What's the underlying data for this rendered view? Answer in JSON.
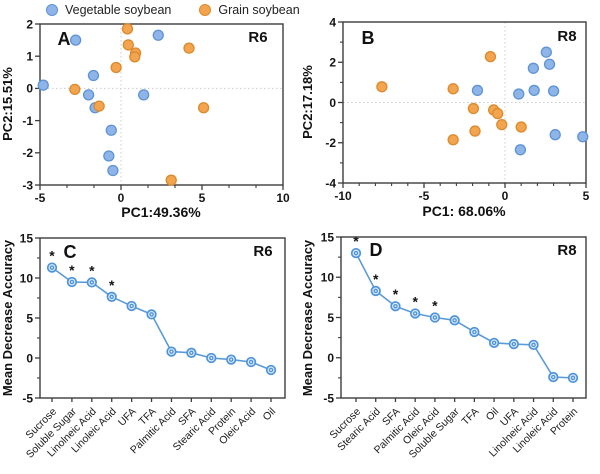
{
  "legend": {
    "items": [
      {
        "label": "Vegetable soybean",
        "fill": "#8FB5E8",
        "stroke": "#5E93D6"
      },
      {
        "label": "Grain soybean",
        "fill": "#F2A44F",
        "stroke": "#DB8A2E"
      }
    ]
  },
  "chart_data": [
    {
      "type": "scatter",
      "panel_letter": "A",
      "stage_label": "R6",
      "xlabel": "PC1:49.36%",
      "ylabel": "PC2:15.51%",
      "xlim": [
        -5,
        10
      ],
      "ylim": [
        -3,
        2
      ],
      "xticks": [
        -5,
        0,
        5,
        10
      ],
      "yticks": [
        -3,
        -2,
        -1,
        0,
        1,
        2
      ],
      "x_minor_step": 1.6667,
      "y_minor_step": null,
      "zero_lines": true,
      "grid": false,
      "legend_position": "top",
      "series": [
        {
          "name": "Vegetable soybean",
          "fill": "#8FB5E8",
          "stroke": "#5E93D6",
          "points": [
            [
              -4.8,
              0.1
            ],
            [
              -2.8,
              1.5
            ],
            [
              -1.7,
              0.4
            ],
            [
              -2.0,
              -0.2
            ],
            [
              -1.6,
              -0.6
            ],
            [
              2.3,
              1.65
            ],
            [
              1.4,
              -0.2
            ],
            [
              -0.6,
              -1.3
            ],
            [
              -0.75,
              -2.1
            ],
            [
              -0.5,
              -2.55
            ]
          ]
        },
        {
          "name": "Grain soybean",
          "fill": "#F2A44F",
          "stroke": "#DB8A2E",
          "points": [
            [
              0.4,
              1.85
            ],
            [
              0.45,
              1.35
            ],
            [
              0.9,
              1.1
            ],
            [
              0.85,
              0.98
            ],
            [
              -0.3,
              0.65
            ],
            [
              -2.85,
              -0.03
            ],
            [
              -1.35,
              -0.55
            ],
            [
              4.2,
              1.25
            ],
            [
              5.1,
              -0.6
            ],
            [
              3.1,
              -2.85
            ]
          ]
        }
      ]
    },
    {
      "type": "scatter",
      "panel_letter": "B",
      "stage_label": "R8",
      "xlabel": "PC1: 68.06%",
      "ylabel": "PC2:17.18%",
      "xlim": [
        -10,
        5
      ],
      "ylim": [
        -4,
        4
      ],
      "xticks": [
        -10,
        -5,
        0,
        5
      ],
      "yticks": [
        -4,
        -2,
        0,
        2,
        4
      ],
      "x_minor_step": 1,
      "y_minor_step": 1,
      "zero_lines": true,
      "grid": false,
      "series": [
        {
          "name": "Vegetable soybean",
          "fill": "#8FB5E8",
          "stroke": "#5E93D6",
          "points": [
            [
              2.55,
              2.5
            ],
            [
              2.75,
              1.9
            ],
            [
              1.75,
              1.7
            ],
            [
              -1.7,
              0.6
            ],
            [
              0.85,
              0.42
            ],
            [
              1.8,
              0.6
            ],
            [
              3.0,
              0.57
            ],
            [
              3.1,
              -1.6
            ],
            [
              4.8,
              -1.7
            ],
            [
              0.95,
              -2.35
            ]
          ]
        },
        {
          "name": "Grain soybean",
          "fill": "#F2A44F",
          "stroke": "#DB8A2E",
          "points": [
            [
              -7.6,
              0.78
            ],
            [
              -3.2,
              0.68
            ],
            [
              -0.9,
              2.28
            ],
            [
              -1.95,
              -0.3
            ],
            [
              -0.7,
              -0.37
            ],
            [
              -0.45,
              -0.55
            ],
            [
              -0.2,
              -1.1
            ],
            [
              -1.85,
              -1.42
            ],
            [
              -3.2,
              -1.85
            ],
            [
              1.0,
              -1.22
            ]
          ]
        }
      ]
    },
    {
      "type": "line",
      "panel_letter": "C",
      "stage_label": "R6",
      "xlabel": "",
      "ylabel": "Mean Decrease Accuracy",
      "ylim": [
        -5,
        15
      ],
      "yticks": [
        -5,
        0,
        5,
        10,
        15
      ],
      "y_minor_step": 2.5,
      "line_color": "#5B9BD5",
      "marker_fill": "#DCEAF9",
      "marker_stroke": "#4E94DB",
      "categories": [
        "Sucrose",
        "Soluble Sugar",
        "Linolneic Acid",
        "Linoleic Acid",
        "UFA",
        "TFA",
        "Palmitic Acid",
        "SFA",
        "Stearic Acid",
        "Protein",
        "Oleic Acid",
        "Oil"
      ],
      "values": [
        11.3,
        9.5,
        9.45,
        7.65,
        6.5,
        5.45,
        0.8,
        0.65,
        0.0,
        -0.2,
        -0.5,
        -1.5
      ],
      "significance_marker": "*",
      "significant_indices": [
        0,
        1,
        2,
        3
      ]
    },
    {
      "type": "line",
      "panel_letter": "D",
      "stage_label": "R8",
      "xlabel": "",
      "ylabel": "Mean Decrease Accuracy",
      "ylim": [
        -5,
        15
      ],
      "yticks": [
        -5,
        0,
        5,
        10,
        15
      ],
      "y_minor_step": 2.5,
      "line_color": "#5B9BD5",
      "marker_fill": "#DCEAF9",
      "marker_stroke": "#4E94DB",
      "categories": [
        "Sucrose",
        "Stearic Acid",
        "SFA",
        "Palmitic Acid",
        "Oleic Acid",
        "Soluble Sugar",
        "TFA",
        "Oil",
        "UFA",
        "Linolneic Acid",
        "Linoleic Acid",
        "Protein"
      ],
      "values": [
        13.0,
        8.3,
        6.4,
        5.5,
        5.0,
        4.65,
        3.2,
        1.85,
        1.7,
        1.6,
        -2.4,
        -2.5
      ],
      "significance_marker": "*",
      "significant_indices": [
        0,
        1,
        2,
        3,
        4
      ]
    }
  ]
}
